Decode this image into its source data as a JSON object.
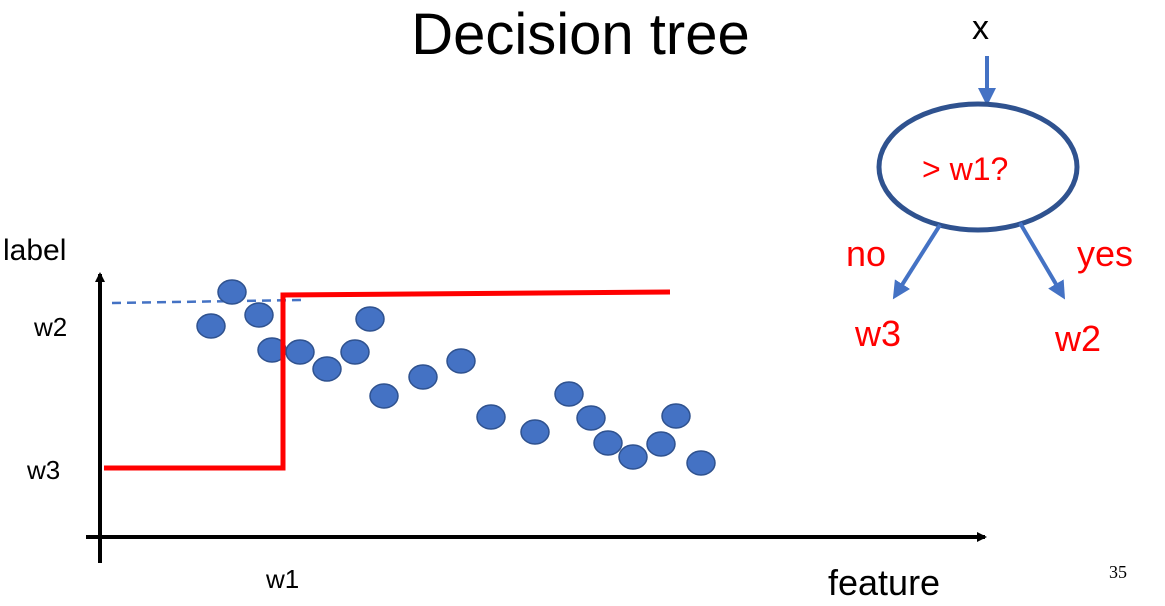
{
  "title": "Decision tree",
  "axes": {
    "y_label": "label",
    "x_label": "feature",
    "y_ticks": [
      "w2",
      "w3"
    ],
    "x_ticks": [
      "w1"
    ]
  },
  "tree": {
    "input": "x",
    "node": "> w1?",
    "branch_no": "no",
    "branch_yes": "yes",
    "leaf_no": "w3",
    "leaf_yes": "w2"
  },
  "page_number": "35",
  "colors": {
    "points": "#4472c4",
    "step": "#ff0000",
    "node_border": "#2f528f",
    "arrow": "#4472c4",
    "tree_text": "#ff0000"
  }
}
